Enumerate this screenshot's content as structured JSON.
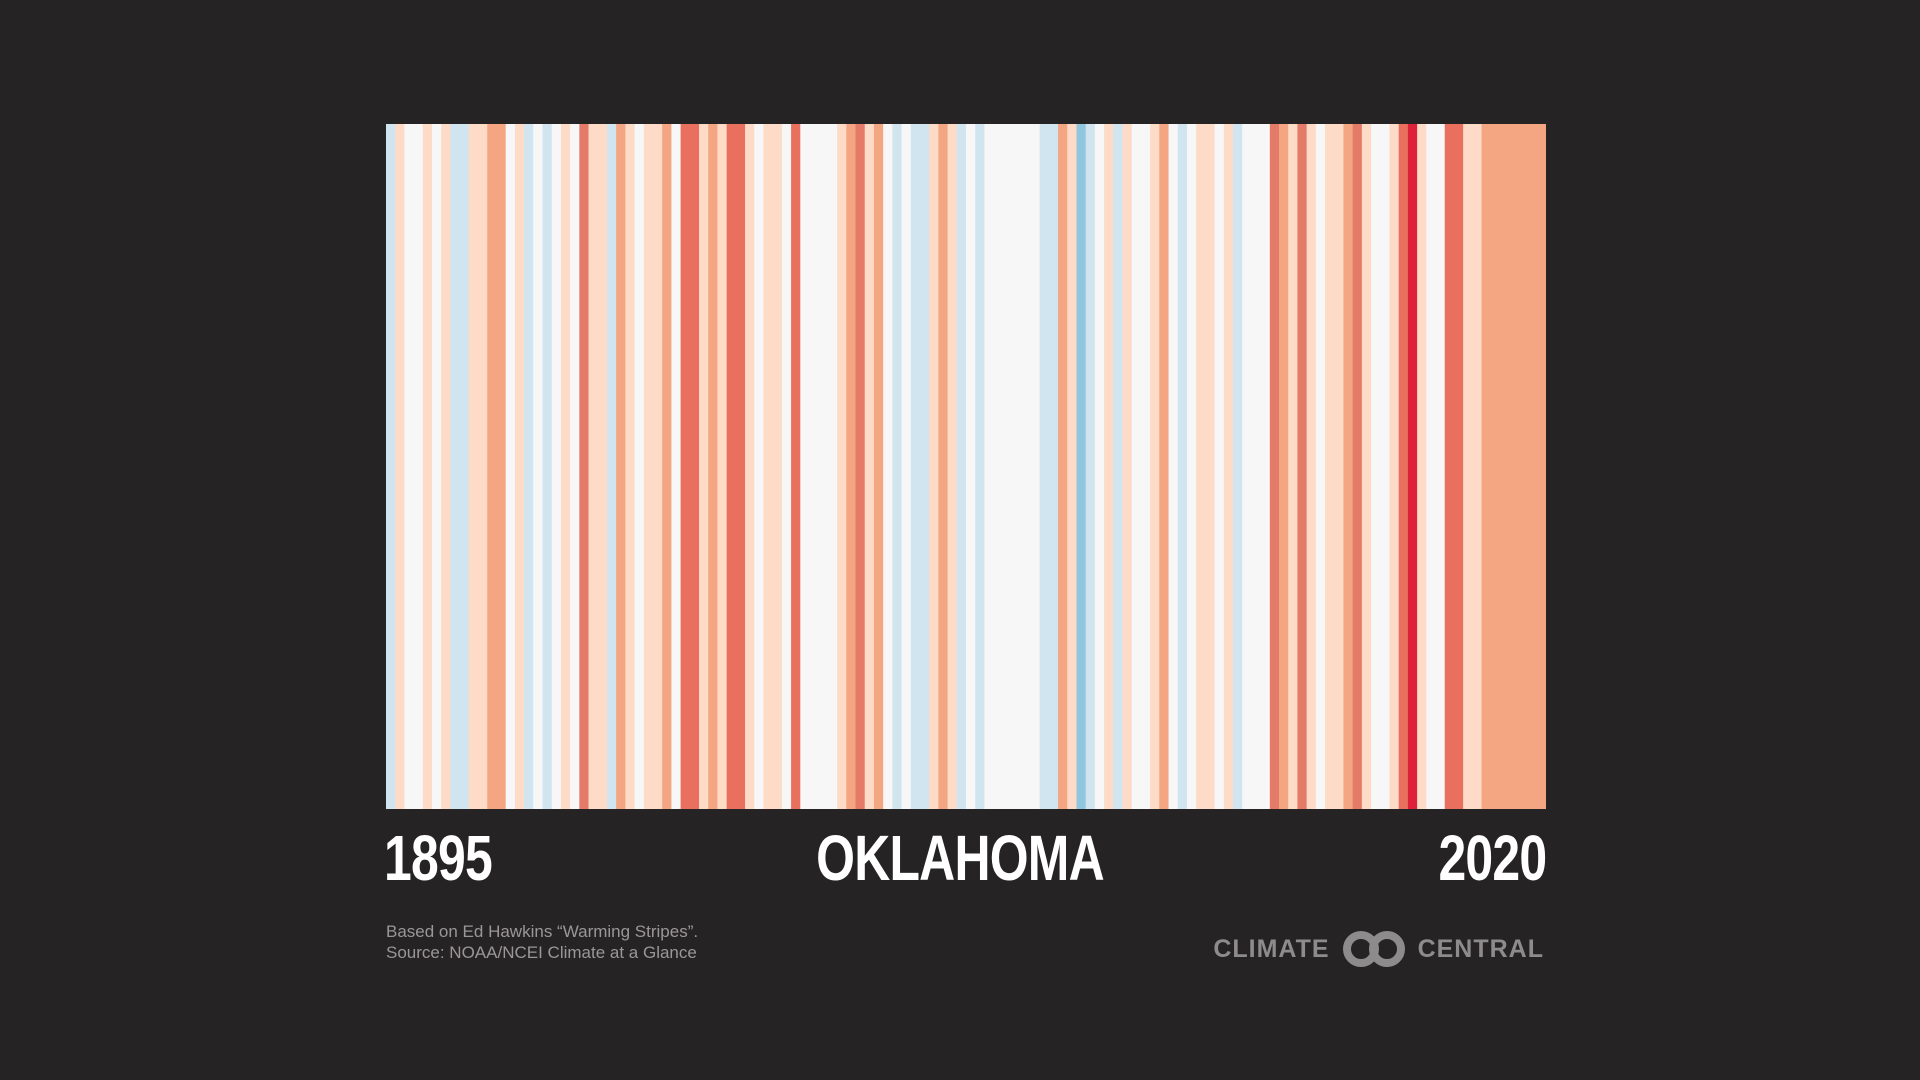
{
  "chart_data": {
    "type": "heatmap",
    "title": "OKLAHOMA",
    "x_start_label": "1895",
    "x_end_label": "2020",
    "years": [
      1895,
      1896,
      1897,
      1898,
      1899,
      1900,
      1901,
      1902,
      1903,
      1904,
      1905,
      1906,
      1907,
      1908,
      1909,
      1910,
      1911,
      1912,
      1913,
      1914,
      1915,
      1916,
      1917,
      1918,
      1919,
      1920,
      1921,
      1922,
      1923,
      1924,
      1925,
      1926,
      1927,
      1928,
      1929,
      1930,
      1931,
      1932,
      1933,
      1934,
      1935,
      1936,
      1937,
      1938,
      1939,
      1940,
      1941,
      1942,
      1943,
      1944,
      1945,
      1946,
      1947,
      1948,
      1949,
      1950,
      1951,
      1952,
      1953,
      1954,
      1955,
      1956,
      1957,
      1958,
      1959,
      1960,
      1961,
      1962,
      1963,
      1964,
      1965,
      1966,
      1967,
      1968,
      1969,
      1970,
      1971,
      1972,
      1973,
      1974,
      1975,
      1976,
      1977,
      1978,
      1979,
      1980,
      1981,
      1982,
      1983,
      1984,
      1985,
      1986,
      1987,
      1988,
      1989,
      1990,
      1991,
      1992,
      1993,
      1994,
      1995,
      1996,
      1997,
      1998,
      1999,
      2000,
      2001,
      2002,
      2003,
      2004,
      2005,
      2006,
      2007,
      2008,
      2009,
      2010,
      2011,
      2012,
      2013,
      2014,
      2015,
      2016,
      2017,
      2018,
      2019,
      2020
    ],
    "stripe_colors": [
      "#d1e5f0",
      "#fddbc7",
      "#f7f7f7",
      "#f7f7f7",
      "#fddbc7",
      "#f7f7f7",
      "#fddbc7",
      "#d1e5f0",
      "#d1e5f0",
      "#fddbc7",
      "#fddbc7",
      "#f4a582",
      "#f4a582",
      "#f7f7f7",
      "#fddbc7",
      "#d1e5f0",
      "#f7f7f7",
      "#d1e5f0",
      "#f7f7f7",
      "#fddbc7",
      "#f7f7f7",
      "#e47b68",
      "#fddbc7",
      "#fddbc7",
      "#d1e5f0",
      "#f4a582",
      "#fddbc7",
      "#f7f7f7",
      "#fddbc7",
      "#fddbc7",
      "#f4a582",
      "#f7f7f7",
      "#e9705e",
      "#e9705e",
      "#fddbc7",
      "#f4a582",
      "#fddbc7",
      "#e9705e",
      "#e9705e",
      "#fddbc7",
      "#f7f7f7",
      "#fddbc7",
      "#fddbc7",
      "#f7f7f7",
      "#e9705e",
      "#f7f7f7",
      "#f7f7f7",
      "#f7f7f7",
      "#f7f7f7",
      "#fddbc7",
      "#f4a582",
      "#e47b68",
      "#fddbc7",
      "#f4a582",
      "#f7f7f7",
      "#d1e5f0",
      "#f7f7f7",
      "#d1e5f0",
      "#d1e5f0",
      "#fddbc7",
      "#f4a582",
      "#fddbc7",
      "#d1e5f0",
      "#f7f7f7",
      "#d1e5f0",
      "#f7f7f7",
      "#f7f7f7",
      "#f7f7f7",
      "#f7f7f7",
      "#f7f7f7",
      "#f7f7f7",
      "#d1e5f0",
      "#d1e5f0",
      "#f4a582",
      "#fddbc7",
      "#92c5de",
      "#d1e5f0",
      "#f7f7f7",
      "#fddbc7",
      "#d1e5f0",
      "#fddbc7",
      "#f7f7f7",
      "#f7f7f7",
      "#fddbc7",
      "#f4a582",
      "#f7f7f7",
      "#d1e5f0",
      "#f7f7f7",
      "#fddbc7",
      "#fddbc7",
      "#f7f7f7",
      "#fddbc7",
      "#d1e5f0",
      "#f7f7f7",
      "#f7f7f7",
      "#f7f7f7",
      "#e47b68",
      "#f4a582",
      "#fddbc7",
      "#e47b68",
      "#fddbc7",
      "#f7f7f7",
      "#fddbc7",
      "#fddbc7",
      "#f4a582",
      "#e47b68",
      "#fddbc7",
      "#f7f7f7",
      "#f7f7f7",
      "#fddbc7",
      "#e9705e",
      "#dc2139",
      "#fddbc7",
      "#f7f7f7",
      "#f7f7f7",
      "#e9705e",
      "#e9705e",
      "#fddbc7",
      "#fddbc7",
      "#f4a582",
      "#f4a582",
      "#f4a582",
      "#f4a582",
      "#f4a582",
      "#f4a582",
      "#f4a582"
    ]
  },
  "credits": {
    "line1": "Based on Ed Hawkins “Warming Stripes”.",
    "line2": "Source: NOAA/NCEI Climate at a Glance"
  },
  "logo": {
    "left_text": "CLIMATE",
    "right_text": "CENTRAL",
    "color": "#8e8b8c"
  },
  "background_color": "#262324"
}
